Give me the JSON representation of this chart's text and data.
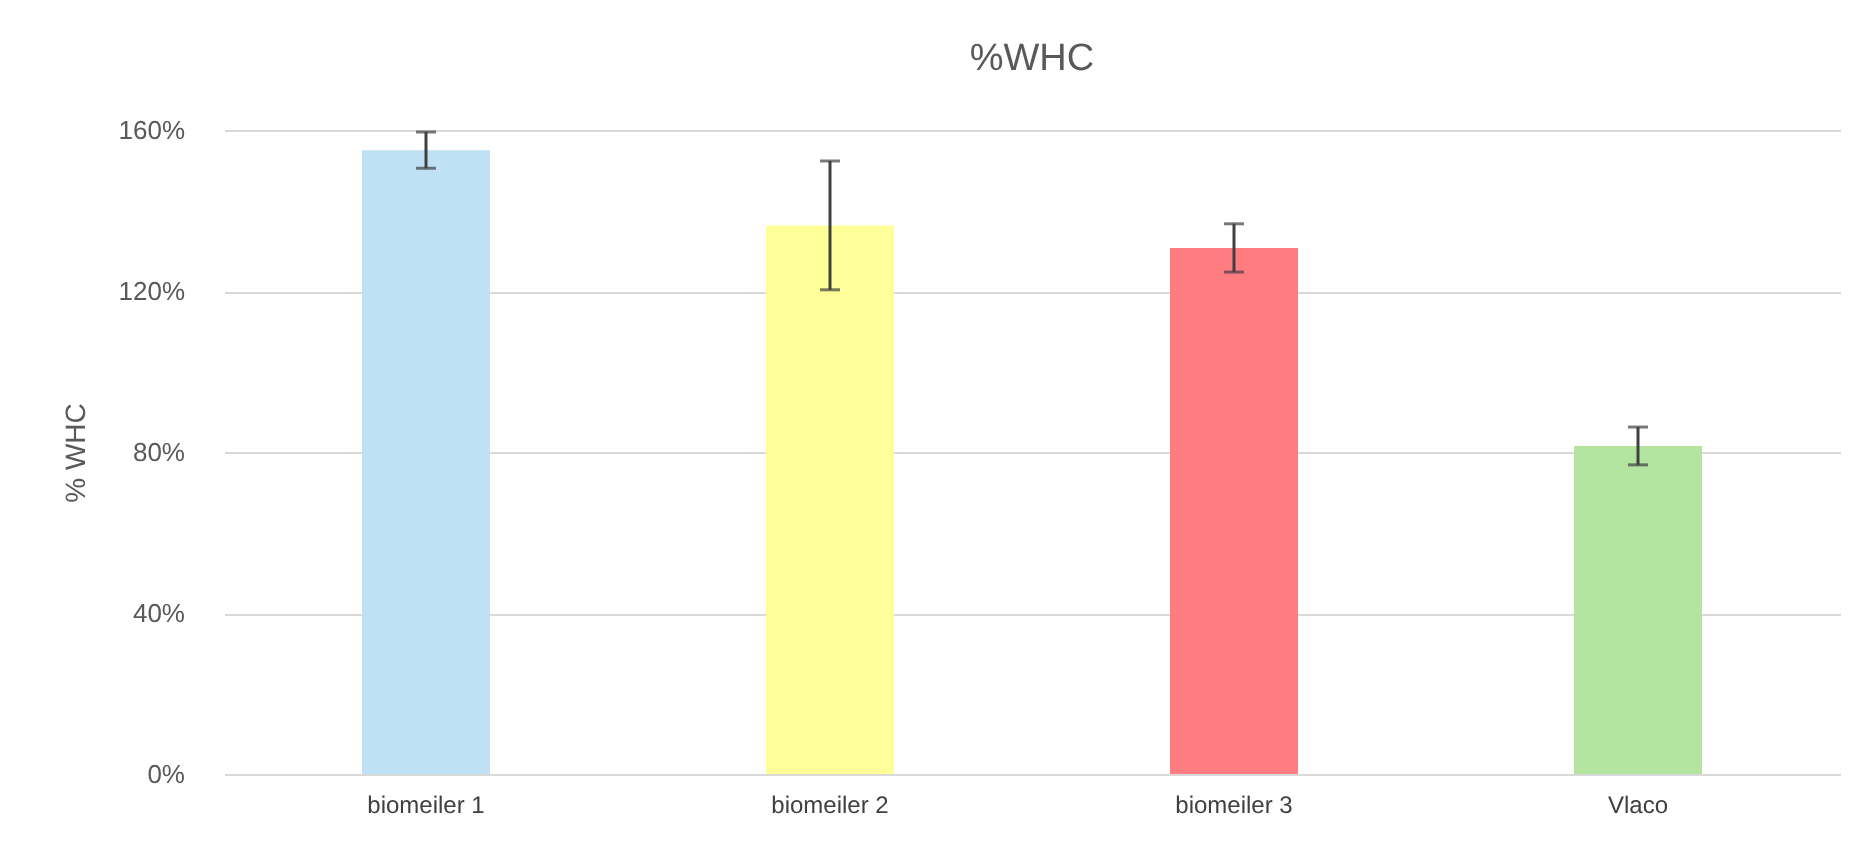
{
  "chart_data": {
    "type": "bar",
    "title": "%WHC",
    "ylabel": "% WHC",
    "categories": [
      "biomeiler 1",
      "biomeiler 2",
      "biomeiler 3",
      "Vlaco"
    ],
    "values": [
      155,
      136.3,
      130.7,
      81.5
    ],
    "errors": [
      4.5,
      16,
      6,
      4.7
    ],
    "colors": [
      "#bfe1f4",
      "#ffff99",
      "#ff7c80",
      "#b3e5a1"
    ],
    "ylim": [
      0,
      160
    ],
    "yticks": [
      {
        "value": 0,
        "label": "0%"
      },
      {
        "value": 40,
        "label": "40%"
      },
      {
        "value": 80,
        "label": "80%"
      },
      {
        "value": 120,
        "label": "120%"
      },
      {
        "value": 160,
        "label": "160%"
      }
    ],
    "grid": "y",
    "legend": false
  }
}
